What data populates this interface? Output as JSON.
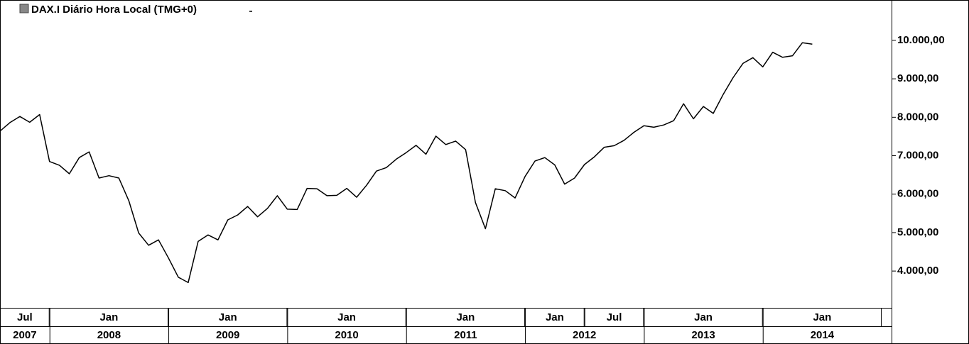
{
  "chart_data": {
    "type": "line",
    "title": "DAX.I Diário Hora Local (TMG+0)",
    "x": [
      "2007-08",
      "2007-09",
      "2007-10",
      "2007-11",
      "2007-12",
      "2008-01",
      "2008-02",
      "2008-03",
      "2008-04",
      "2008-05",
      "2008-06",
      "2008-07",
      "2008-08",
      "2008-09",
      "2008-10",
      "2008-11",
      "2008-12",
      "2009-01",
      "2009-02",
      "2009-03",
      "2009-04",
      "2009-05",
      "2009-06",
      "2009-07",
      "2009-08",
      "2009-09",
      "2009-10",
      "2009-11",
      "2009-12",
      "2010-01",
      "2010-02",
      "2010-03",
      "2010-04",
      "2010-05",
      "2010-06",
      "2010-07",
      "2010-08",
      "2010-09",
      "2010-10",
      "2010-11",
      "2010-12",
      "2011-01",
      "2011-02",
      "2011-03",
      "2011-04",
      "2011-05",
      "2011-06",
      "2011-07",
      "2011-08",
      "2011-09",
      "2011-10",
      "2011-11",
      "2011-12",
      "2012-01",
      "2012-02",
      "2012-03",
      "2012-04",
      "2012-05",
      "2012-06",
      "2012-07",
      "2012-08",
      "2012-09",
      "2012-10",
      "2012-11",
      "2012-12",
      "2013-01",
      "2013-02",
      "2013-03",
      "2013-04",
      "2013-05",
      "2013-06",
      "2013-07",
      "2013-08",
      "2013-09",
      "2013-10",
      "2013-11",
      "2013-12",
      "2014-01",
      "2014-02",
      "2014-03",
      "2014-04",
      "2014-05",
      "2014-06"
    ],
    "series": [
      {
        "color": "#000000",
        "values": [
          7640,
          7860,
          8020,
          7870,
          8070,
          6850,
          6750,
          6530,
          6950,
          7100,
          6420,
          6480,
          6420,
          5830,
          4990,
          4670,
          4810,
          4340,
          3840,
          3700,
          4770,
          4940,
          4810,
          5330,
          5460,
          5680,
          5410,
          5630,
          5960,
          5610,
          5600,
          6150,
          6140,
          5960,
          5970,
          6150,
          5920,
          6230,
          6600,
          6690,
          6910,
          7080,
          7270,
          7040,
          7510,
          7290,
          7380,
          7160,
          5780,
          5100,
          6140,
          6090,
          5900,
          6460,
          6860,
          6950,
          6760,
          6260,
          6420,
          6770,
          6970,
          7220,
          7260,
          7400,
          7610,
          7780,
          7740,
          7800,
          7910,
          8350,
          7960,
          8280,
          8100,
          8590,
          9030,
          9400,
          9550,
          9310,
          9690,
          9560,
          9600,
          9940,
          9900
        ]
      }
    ],
    "xlim": [
      "2007-08",
      "2015-02"
    ],
    "ylim": [
      3080,
      11050
    ],
    "yticks": [
      {
        "value": 4000,
        "label": "4.000,00"
      },
      {
        "value": 5000,
        "label": "5.000,00"
      },
      {
        "value": 6000,
        "label": "6.000,00"
      },
      {
        "value": 7000,
        "label": "7.000,00"
      },
      {
        "value": 8000,
        "label": "8.000,00"
      },
      {
        "value": 9000,
        "label": "9.000,00"
      },
      {
        "value": 10000,
        "label": "10.000,00"
      }
    ],
    "xticks": [
      {
        "value": "2007-07",
        "label": "Jul"
      },
      {
        "value": "2008-01",
        "label": "Jan"
      },
      {
        "value": "2009-01",
        "label": "Jan"
      },
      {
        "value": "2010-01",
        "label": "Jan"
      },
      {
        "value": "2011-01",
        "label": "Jan"
      },
      {
        "value": "2012-01",
        "label": "Jan"
      },
      {
        "value": "2012-07",
        "label": "Jul"
      },
      {
        "value": "2013-01",
        "label": "Jan"
      },
      {
        "value": "2014-01",
        "label": "Jan"
      }
    ],
    "year_ticks": [
      2007,
      2008,
      2009,
      2010,
      2011,
      2012,
      2013,
      2014
    ]
  }
}
